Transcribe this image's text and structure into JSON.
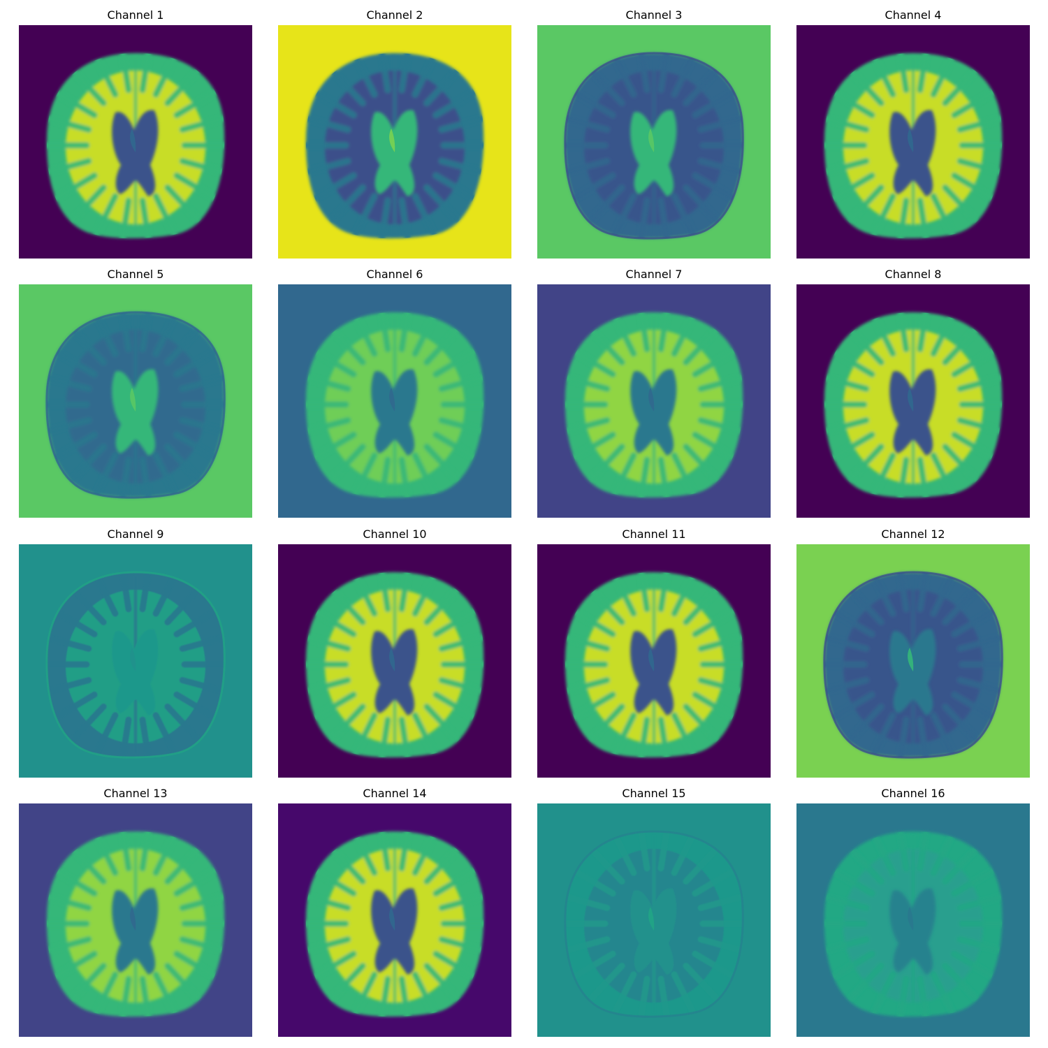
{
  "panels": [
    {
      "title": "Channel 1",
      "bg": "#440154",
      "brain": "#35b779",
      "wm": "#e2e418",
      "vent": "#3b528b",
      "ventInner": "#31688e",
      "style": "bright"
    },
    {
      "title": "Channel 2",
      "bg": "#e7e419",
      "brain": "#2a788e",
      "wm": "#3e4989",
      "vent": "#35b779",
      "ventInner": "#7ad151",
      "style": "inverse"
    },
    {
      "title": "Channel 3",
      "bg": "#5ac864",
      "brain": "#31688e",
      "wm": "#3b528b",
      "vent": "#35b779",
      "ventInner": "#5ac864",
      "style": "edge"
    },
    {
      "title": "Channel 4",
      "bg": "#440154",
      "brain": "#35b779",
      "wm": "#e2e418",
      "vent": "#3b528b",
      "ventInner": "#31688e",
      "style": "bright"
    },
    {
      "title": "Channel 5",
      "bg": "#5ac864",
      "brain": "#2a788e",
      "wm": "#31688e",
      "vent": "#35b779",
      "ventInner": "#5ac864",
      "style": "edge"
    },
    {
      "title": "Channel 6",
      "bg": "#31688e",
      "brain": "#35b779",
      "wm": "#7ad151",
      "vent": "#2a788e",
      "ventInner": "#31688e",
      "style": "mid"
    },
    {
      "title": "Channel 7",
      "bg": "#414487",
      "brain": "#35b779",
      "wm": "#a0da39",
      "vent": "#2a788e",
      "ventInner": "#31688e",
      "style": "mid"
    },
    {
      "title": "Channel 8",
      "bg": "#440154",
      "brain": "#35b779",
      "wm": "#e2e418",
      "vent": "#3b528b",
      "ventInner": "#31688e",
      "style": "bright"
    },
    {
      "title": "Channel 9",
      "bg": "#21918c",
      "brain": "#2a788e",
      "wm": "#21a585",
      "vent": "#1f988b",
      "ventInner": "#21918c",
      "style": "flat"
    },
    {
      "title": "Channel 10",
      "bg": "#440154",
      "brain": "#35b779",
      "wm": "#e2e418",
      "vent": "#3b528b",
      "ventInner": "#31688e",
      "style": "bright"
    },
    {
      "title": "Channel 11",
      "bg": "#440154",
      "brain": "#35b779",
      "wm": "#e2e418",
      "vent": "#3b528b",
      "ventInner": "#31688e",
      "style": "bright"
    },
    {
      "title": "Channel 12",
      "bg": "#7ad151",
      "brain": "#31688e",
      "wm": "#3b528b",
      "vent": "#2a788e",
      "ventInner": "#35b779",
      "style": "edge"
    },
    {
      "title": "Channel 13",
      "bg": "#414487",
      "brain": "#35b779",
      "wm": "#a0da39",
      "vent": "#2a788e",
      "ventInner": "#31688e",
      "style": "mid"
    },
    {
      "title": "Channel 14",
      "bg": "#46086b",
      "brain": "#35b779",
      "wm": "#e2e418",
      "vent": "#3b528b",
      "ventInner": "#31688e",
      "style": "bright"
    },
    {
      "title": "Channel 15",
      "bg": "#21918c",
      "brain": "#1f988b",
      "wm": "#26828e",
      "vent": "#21918c",
      "ventInner": "#21a585",
      "style": "flat"
    },
    {
      "title": "Channel 16",
      "bg": "#2a788e",
      "brain": "#22a884",
      "wm": "#2a9d8f",
      "vent": "#26828e",
      "ventInner": "#2a788e",
      "style": "mid"
    }
  ]
}
